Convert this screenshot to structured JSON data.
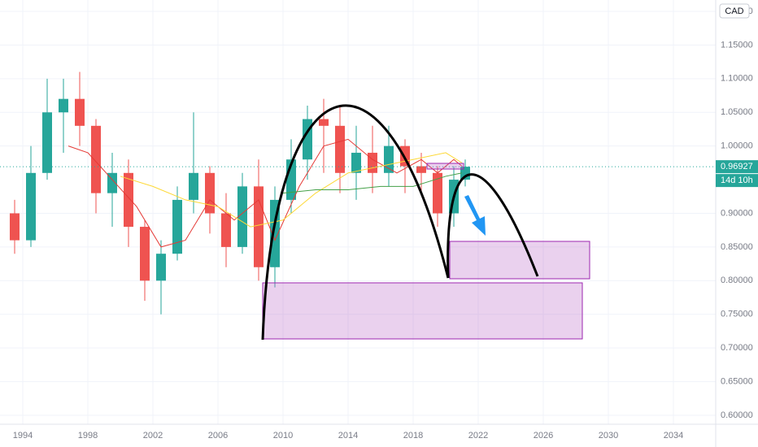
{
  "chart_data": {
    "type": "candlestick",
    "currency": "CAD",
    "x": [
      1993.5,
      1994.5,
      1995.5,
      1996.5,
      1997.5,
      1998.5,
      1999.5,
      2000.5,
      2001.5,
      2002.5,
      2003.5,
      2004.5,
      2005.5,
      2006.5,
      2007.5,
      2008.5,
      2009.5,
      2010.5,
      2011.5,
      2012.5,
      2013.5,
      2014.5,
      2015.5,
      2016.5,
      2017.5,
      2018.5,
      2019.5,
      2020.5,
      2021.2
    ],
    "open": [
      0.9,
      0.86,
      0.96,
      1.05,
      1.07,
      1.03,
      0.93,
      0.96,
      0.88,
      0.8,
      0.84,
      0.92,
      0.96,
      0.9,
      0.85,
      0.94,
      0.82,
      0.92,
      0.98,
      1.04,
      1.03,
      0.96,
      0.99,
      0.96,
      1.0,
      0.97,
      0.96,
      0.9,
      0.95
    ],
    "high": [
      0.92,
      1.0,
      1.1,
      1.1,
      1.11,
      1.04,
      0.99,
      0.98,
      0.89,
      0.86,
      0.94,
      1.05,
      0.97,
      0.93,
      0.96,
      0.98,
      0.94,
      1.01,
      1.06,
      1.07,
      1.06,
      1.03,
      1.03,
      1.03,
      1.01,
      0.99,
      0.97,
      0.97,
      0.98
    ],
    "low": [
      0.84,
      0.85,
      0.95,
      0.99,
      1.0,
      0.9,
      0.88,
      0.85,
      0.77,
      0.75,
      0.83,
      0.9,
      0.87,
      0.82,
      0.84,
      0.8,
      0.79,
      0.9,
      0.95,
      0.96,
      0.93,
      0.92,
      0.93,
      0.94,
      0.93,
      0.93,
      0.88,
      0.88,
      0.94
    ],
    "close": [
      0.86,
      0.96,
      1.05,
      1.07,
      1.03,
      0.93,
      0.96,
      0.88,
      0.8,
      0.84,
      0.92,
      0.96,
      0.9,
      0.85,
      0.94,
      0.82,
      0.92,
      0.98,
      1.04,
      1.03,
      0.96,
      0.99,
      0.96,
      1.0,
      0.97,
      0.96,
      0.9,
      0.95,
      0.96927
    ],
    "up_color": "#26a69a",
    "down_color": "#ef5350",
    "lines": [
      {
        "color": "#e53935",
        "x": [
          1996.8,
          1998,
          1999.5,
          2001,
          2002.5,
          2004,
          2005.5,
          2007,
          2008.5,
          2009.5,
          2011,
          2012.5,
          2014,
          2015.5,
          2017,
          2018.5,
          2019.5,
          2020.5,
          2021
        ],
        "values": [
          1.0,
          0.99,
          0.95,
          0.91,
          0.85,
          0.86,
          0.92,
          0.89,
          0.92,
          0.86,
          0.94,
          1.0,
          1.01,
          0.98,
          0.96,
          0.98,
          0.96,
          0.98,
          0.97
        ]
      },
      {
        "color": "#fdd835",
        "x": [
          2000,
          2002,
          2004,
          2006,
          2008,
          2010,
          2012,
          2014,
          2016,
          2018,
          2020,
          2021
        ],
        "values": [
          0.955,
          0.94,
          0.92,
          0.91,
          0.88,
          0.89,
          0.93,
          0.96,
          0.97,
          0.98,
          0.99,
          0.975
        ]
      },
      {
        "color": "#43a047",
        "x": [
          2010,
          2012,
          2014,
          2016,
          2018,
          2020,
          2021
        ],
        "values": [
          0.93,
          0.935,
          0.935,
          0.94,
          0.94,
          0.955,
          0.96
        ]
      }
    ],
    "last_price": 0.96927,
    "countdown": "14d 10h",
    "xlim": [
      1992.6,
      2036.6
    ],
    "ylim": [
      0.5867,
      1.2169
    ],
    "xticks": [
      1994,
      1998,
      2002,
      2006,
      2010,
      2014,
      2018,
      2022,
      2026,
      2030,
      2034
    ],
    "yticks": [
      {
        "value": 0.6,
        "label": "0.60000"
      },
      {
        "value": 0.65,
        "label": "0.65000"
      },
      {
        "value": 0.7,
        "label": "0.70000"
      },
      {
        "value": 0.75,
        "label": "0.75000"
      },
      {
        "value": 0.8,
        "label": "0.80000"
      },
      {
        "value": 0.85,
        "label": "0.85000"
      },
      {
        "value": 0.9,
        "label": "0.90000"
      },
      {
        "value": 1.0,
        "label": "1.00000"
      },
      {
        "value": 1.05,
        "label": "1.05000"
      },
      {
        "value": 1.1,
        "label": "1.10000"
      },
      {
        "value": 1.15,
        "label": "1.15000"
      },
      {
        "value": 1.2,
        "label": "1.20000"
      }
    ],
    "grid": true
  }
}
